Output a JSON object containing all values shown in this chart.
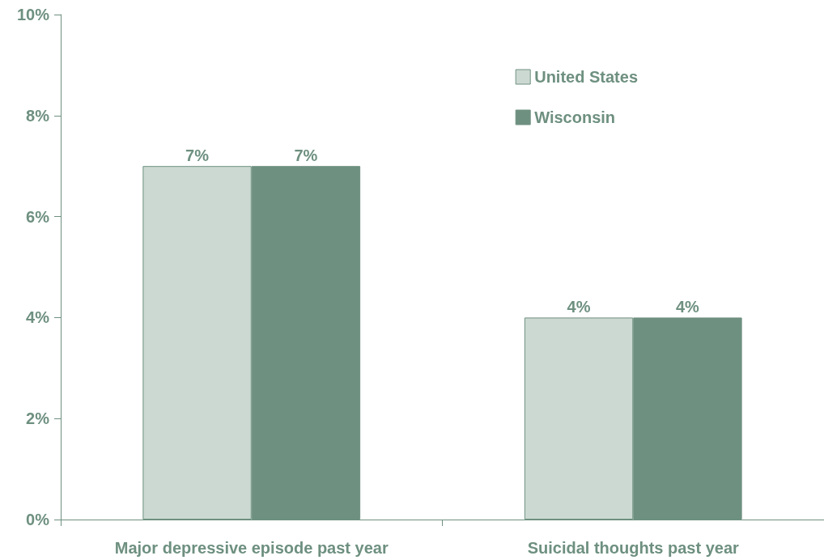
{
  "chart_data": {
    "type": "bar",
    "categories": [
      "Major depressive episode past year",
      "Suicidal thoughts past year"
    ],
    "series": [
      {
        "name": "United States",
        "color": "#ccd9d2",
        "values": [
          7,
          4
        ],
        "value_labels": [
          "7%",
          "4%"
        ]
      },
      {
        "name": "Wisconsin",
        "color": "#6e9080",
        "values": [
          7,
          4
        ],
        "value_labels": [
          "7%",
          "4%"
        ]
      }
    ],
    "ylim": [
      0,
      10
    ],
    "yticks": [
      {
        "value": 0,
        "label": "0%"
      },
      {
        "value": 2,
        "label": "2%"
      },
      {
        "value": 4,
        "label": "4%"
      },
      {
        "value": 6,
        "label": "6%"
      },
      {
        "value": 8,
        "label": "8%"
      },
      {
        "value": 10,
        "label": "10%"
      }
    ],
    "grid": false,
    "legend": "top right"
  }
}
